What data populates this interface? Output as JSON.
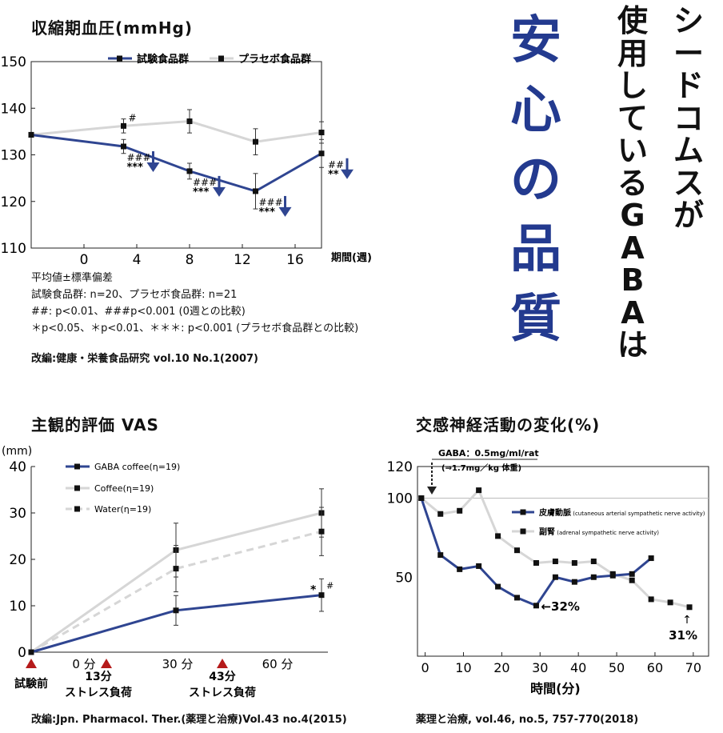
{
  "headline": {
    "col1": [
      "シ",
      "ー",
      "ド",
      "コ",
      "ム",
      "ス",
      "が"
    ],
    "col2": [
      "使",
      "用",
      "し",
      "て",
      "い",
      "る",
      "G",
      "A",
      "B",
      "A",
      "は"
    ],
    "big": [
      "安",
      "心",
      "の",
      "品",
      "質"
    ],
    "big_color": "#233a8f"
  },
  "chart1_notes": [
    "平均値±標準偏差",
    "試験食品群: n=20、プラセボ食品群: n=21",
    "##: p<0.01、###p<0.001 (0週との比較)",
    "＊p<0.05、＊p<0.01、＊＊＊: p<0.001 (プラセボ食品群との比較)"
  ],
  "chart1_source": "改編:健康・栄養食品研究 vol.10 No.1(2007)",
  "chart2_source": "改編:Jpn. Pharmacol. Ther.(薬理と治療)Vol.43 no.4(2015)",
  "chart3_source": "薬理と治療, vol.46, no.5, 757-770(2018)",
  "chart_data": [
    {
      "type": "line",
      "title": "収縮期血圧(mmHg)",
      "xlabel": "期間(週)",
      "xticks": [
        "0",
        "4",
        "8",
        "12",
        "16"
      ],
      "yticks": [
        "150",
        "140",
        "130",
        "120",
        "110"
      ],
      "xlim": [
        -4,
        18
      ],
      "ylim": [
        110,
        150
      ],
      "series": [
        {
          "name": "試験食品群",
          "color": "#2f4591",
          "x": [
            -4,
            3,
            8,
            13,
            18
          ],
          "y": [
            134.3,
            131.8,
            126.5,
            122.2,
            130.3
          ],
          "err": [
            0,
            1.5,
            1.7,
            3.8,
            3.0
          ]
        },
        {
          "name": "プラセボ食品群",
          "color": "#d6d6d6",
          "x": [
            -4,
            3,
            8,
            13,
            18
          ],
          "y": [
            134.3,
            136.2,
            137.2,
            132.8,
            134.8
          ],
          "err": [
            0,
            1.5,
            2.5,
            2.8,
            2.3
          ]
        }
      ],
      "annotations": [
        {
          "x": 3,
          "y": 136.2,
          "text": "#"
        },
        {
          "x": 3,
          "y": 131.8,
          "lines": [
            "###",
            "***"
          ]
        },
        {
          "x": 8,
          "y": 126.5,
          "lines": [
            "###",
            "***"
          ]
        },
        {
          "x": 13,
          "y": 122.2,
          "lines": [
            "###",
            "***"
          ]
        },
        {
          "x": 18,
          "y": 130.3,
          "lines": [
            "##",
            "**"
          ]
        }
      ]
    },
    {
      "type": "line",
      "title": "主観的評価 VAS",
      "ylabel": "(mm)",
      "yticks": [
        "0",
        "10",
        "20",
        "30",
        "40"
      ],
      "xticks": [
        "0 分",
        "30 分",
        "60 分"
      ],
      "ylim": [
        0,
        40
      ],
      "markers": [
        "試験前",
        "13分",
        "ストレス負荷",
        "43分",
        "ストレス負荷"
      ],
      "series": [
        {
          "name": "GABA coffee(η=19)",
          "color": "#2f4591",
          "x": [
            -25,
            30,
            90
          ],
          "y": [
            0,
            9,
            12.3
          ],
          "err": [
            0,
            3.2,
            3.5
          ]
        },
        {
          "name": "Coffee(η=19)",
          "color": "#d6d6d6",
          "x": [
            -25,
            30,
            90
          ],
          "y": [
            0,
            22,
            30
          ],
          "err": [
            0,
            5.8,
            5.2
          ]
        },
        {
          "name": "Water(η=19)",
          "color": "#d6d6d6",
          "dashed": true,
          "x": [
            -25,
            30,
            90
          ],
          "y": [
            0,
            18,
            26
          ],
          "err": [
            0,
            5,
            5.2
          ]
        }
      ],
      "annotations": [
        "*",
        "#"
      ]
    },
    {
      "type": "line",
      "title": "交感神経活動の変化(%)",
      "xlabel": "時間(分)",
      "xticks": [
        "0",
        "10",
        "20",
        "30",
        "40",
        "50",
        "60",
        "70"
      ],
      "yticks": [
        "120",
        "100",
        "50"
      ],
      "xlim": [
        -2,
        74
      ],
      "ylim": [
        0,
        120
      ],
      "dose_label": "GABA：0.5mg/ml/rat",
      "dose_sub": "(⇒1.7mg／kg 体重)",
      "series": [
        {
          "name": "皮膚動脈",
          "sub": "(cutaneous arterial sympathetic nerve activity)",
          "color": "#2f4591",
          "x": [
            -1,
            4,
            9,
            14,
            19,
            24,
            29,
            34,
            39,
            44,
            49,
            54,
            59
          ],
          "y": [
            100,
            64,
            55,
            57,
            44,
            37,
            32,
            50,
            47,
            50,
            51,
            52,
            62
          ]
        },
        {
          "name": "副腎",
          "sub": "(adrenal sympathetic nerve activity)",
          "color": "#d6d6d6",
          "x": [
            -1,
            4,
            9,
            14,
            19,
            24,
            29,
            34,
            39,
            44,
            49,
            54,
            59,
            64,
            69
          ],
          "y": [
            100,
            90,
            92,
            105,
            76,
            67,
            59,
            60,
            59,
            60,
            52,
            48,
            36,
            34,
            31
          ]
        }
      ],
      "labels": [
        "←32%",
        "31%"
      ]
    }
  ]
}
